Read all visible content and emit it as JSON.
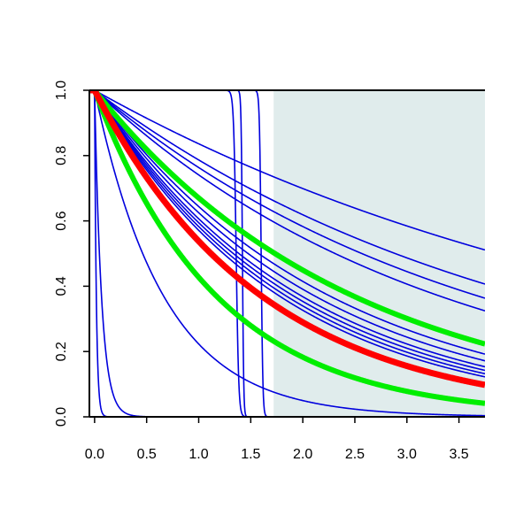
{
  "chart_data": {
    "type": "line",
    "title": "",
    "xlabel": "",
    "ylabel": "",
    "xlim": [
      -0.05,
      3.75
    ],
    "ylim": [
      0,
      1
    ],
    "x_ticks": [
      0.0,
      0.5,
      1.0,
      1.5,
      2.0,
      2.5,
      3.0,
      3.5
    ],
    "x_tick_labels": [
      "0.0",
      "0.5",
      "1.0",
      "1.5",
      "2.0",
      "2.5",
      "3.0",
      "3.5"
    ],
    "y_ticks": [
      0.0,
      0.2,
      0.4,
      0.6,
      0.8,
      1.0
    ],
    "y_tick_labels": [
      "0.0",
      "0.2",
      "0.4",
      "0.6",
      "0.8",
      "1.0"
    ],
    "grid": false,
    "legend": "none",
    "shaded_region": {
      "x_from": 1.72,
      "x_to": 3.75,
      "y_from": 0,
      "y_to": 1,
      "color": "#e0ecec"
    },
    "colors": {
      "blue": "#0000dd",
      "red": "#ff0000",
      "green": "#00ee00",
      "axis": "#000000"
    },
    "series": [
      {
        "color": "blue",
        "kind": "exp",
        "rate": 0.179,
        "width": 1.6
      },
      {
        "color": "blue",
        "kind": "exp",
        "rate": 0.24,
        "width": 1.6
      },
      {
        "color": "blue",
        "kind": "exp",
        "rate": 0.27,
        "width": 1.6
      },
      {
        "color": "blue",
        "kind": "exp",
        "rate": 0.3,
        "width": 1.6
      },
      {
        "color": "blue",
        "kind": "exp",
        "rate": 0.44,
        "width": 1.6
      },
      {
        "color": "blue",
        "kind": "exp",
        "rate": 0.47,
        "width": 1.6
      },
      {
        "color": "blue",
        "kind": "exp",
        "rate": 0.5,
        "width": 1.6
      },
      {
        "color": "blue",
        "kind": "exp",
        "rate": 0.52,
        "width": 1.6
      },
      {
        "color": "blue",
        "kind": "exp",
        "rate": 0.54,
        "width": 1.6
      },
      {
        "color": "blue",
        "kind": "exp",
        "rate": 0.56,
        "width": 1.6
      },
      {
        "color": "blue",
        "kind": "exp",
        "rate": 1.5,
        "width": 1.6
      },
      {
        "color": "blue",
        "kind": "exp",
        "rate": 15.0,
        "width": 1.6
      },
      {
        "color": "blue",
        "kind": "exp",
        "rate": 60.0,
        "width": 1.6
      },
      {
        "color": "blue",
        "kind": "step",
        "x0": 1.36,
        "sharpness": 0.012,
        "width": 1.6
      },
      {
        "color": "blue",
        "kind": "step",
        "x0": 1.42,
        "sharpness": 0.006,
        "width": 1.6
      },
      {
        "color": "blue",
        "kind": "step",
        "x0": 1.6,
        "sharpness": 0.008,
        "width": 1.6
      },
      {
        "color": "green",
        "kind": "exp",
        "rate": 0.4,
        "width": 6
      },
      {
        "color": "green",
        "kind": "exp",
        "rate": 0.85,
        "width": 6
      },
      {
        "color": "red",
        "kind": "exp",
        "rate": 0.62,
        "width": 7
      }
    ]
  }
}
